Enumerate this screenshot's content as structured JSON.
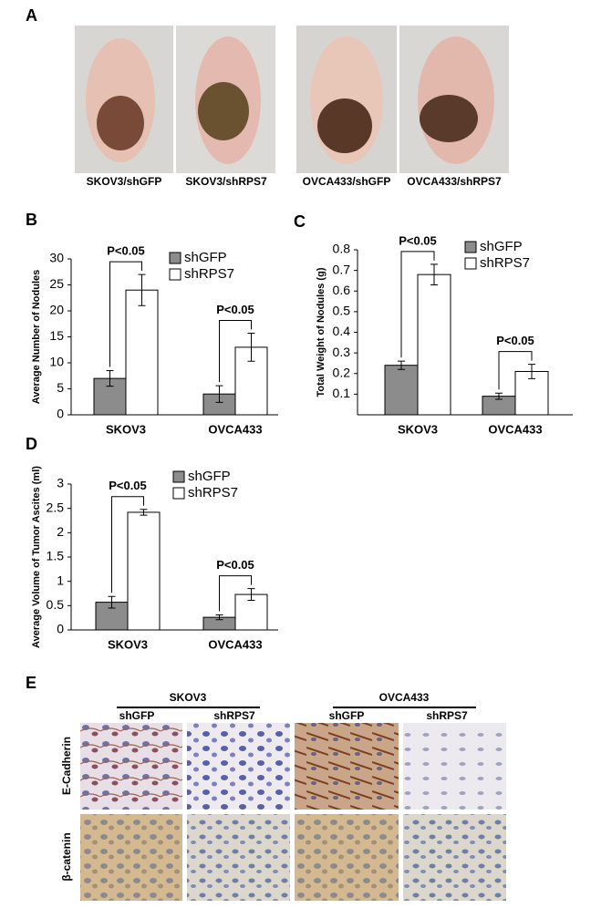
{
  "panels": {
    "A": {
      "label": "A",
      "captions": [
        "SKOV3/shGFP",
        "SKOV3/shRPS7",
        "OVCA433/shGFP",
        "OVCA433/shRPS7"
      ]
    },
    "E": {
      "label": "E",
      "groups": [
        "SKOV3",
        "OVCA433"
      ],
      "columns": [
        "shGFP",
        "shRPS7",
        "shGFP",
        "shRPS7"
      ],
      "rows": [
        "E-Cadherin",
        "β-catenin"
      ]
    }
  },
  "chart_data": [
    {
      "type": "bar",
      "panel_label": "B",
      "ylabel": "Average Number of Nodules",
      "categories": [
        "SKOV3",
        "OVCA433"
      ],
      "series": [
        {
          "name": "shGFP",
          "color": "#8c8c8c",
          "values": [
            7,
            4
          ],
          "errors": [
            1.5,
            1.6
          ]
        },
        {
          "name": "shRPS7",
          "color": "#ffffff",
          "values": [
            24,
            13
          ],
          "errors": [
            3,
            2.7
          ]
        }
      ],
      "ylim": [
        0,
        30
      ],
      "yticks": [
        0,
        5,
        10,
        15,
        20,
        25,
        30
      ],
      "annotations": [
        "P<0.05",
        "P<0.05"
      ]
    },
    {
      "type": "bar",
      "panel_label": "C",
      "ylabel": "Total Weight of Nodules (g)",
      "categories": [
        "SKOV3",
        "OVCA433"
      ],
      "series": [
        {
          "name": "shGFP",
          "color": "#8c8c8c",
          "values": [
            0.24,
            0.09
          ],
          "errors": [
            0.02,
            0.015
          ]
        },
        {
          "name": "shRPS7",
          "color": "#ffffff",
          "values": [
            0.68,
            0.21
          ],
          "errors": [
            0.05,
            0.035
          ]
        }
      ],
      "ylim": [
        0,
        0.8
      ],
      "yticks": [
        0.1,
        0.2,
        0.3,
        0.4,
        0.5,
        0.6,
        0.7,
        0.8
      ],
      "annotations": [
        "P<0.05",
        "P<0.05"
      ]
    },
    {
      "type": "bar",
      "panel_label": "D",
      "ylabel": "Average Volume of Tumor Ascites (ml)",
      "categories": [
        "SKOV3",
        "OVCA433"
      ],
      "series": [
        {
          "name": "shGFP",
          "color": "#8c8c8c",
          "values": [
            0.57,
            0.26
          ],
          "errors": [
            0.12,
            0.05
          ]
        },
        {
          "name": "shRPS7",
          "color": "#ffffff",
          "values": [
            2.42,
            0.73
          ],
          "errors": [
            0.06,
            0.12
          ]
        }
      ],
      "ylim": [
        0,
        3
      ],
      "yticks": [
        0,
        0.5,
        1,
        1.5,
        2,
        2.5,
        3
      ],
      "annotations": [
        "P<0.05",
        "P<0.05"
      ]
    }
  ]
}
